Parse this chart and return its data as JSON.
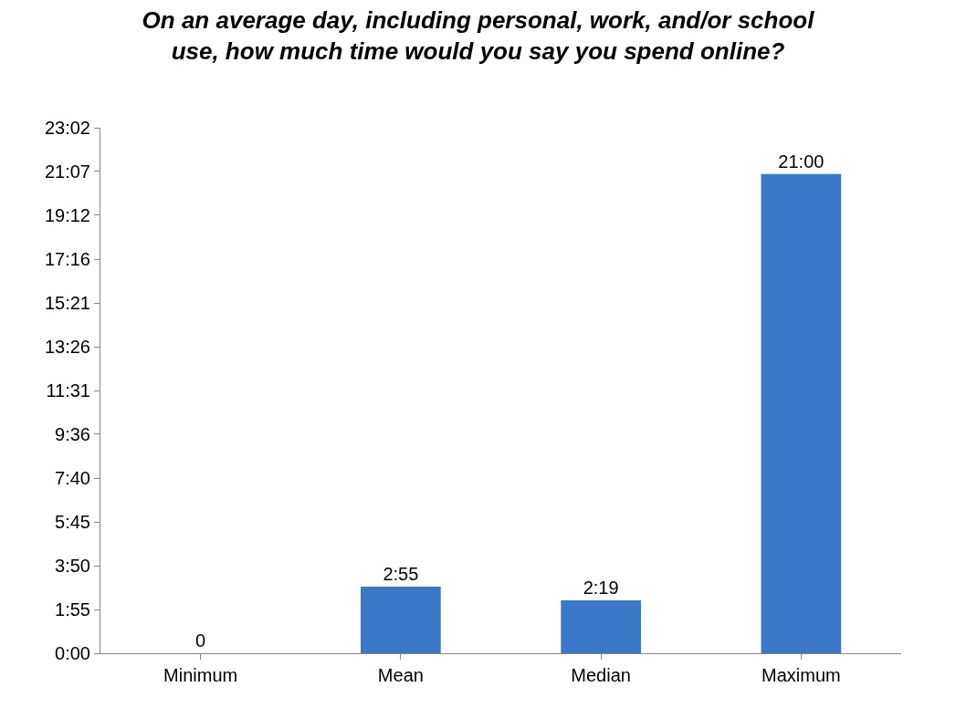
{
  "chart_data": {
    "type": "bar",
    "title": "On an average day, including personal, work, and/or school\nuse, how much time would you say you spend online?",
    "categories": [
      "Minimum",
      "Mean",
      "Median",
      "Maximum"
    ],
    "values": [
      0,
      2.9167,
      2.3167,
      21
    ],
    "value_labels": [
      "0",
      "2:55",
      "2:19",
      "21:00"
    ],
    "color": "#3a78c8",
    "ylim": [
      0,
      23.0333
    ],
    "yticks": [
      {
        "value": 0,
        "label": "0:00"
      },
      {
        "value": 1.9167,
        "label": "1:55"
      },
      {
        "value": 3.8333,
        "label": "3:50"
      },
      {
        "value": 5.75,
        "label": "5:45"
      },
      {
        "value": 7.6667,
        "label": "7:40"
      },
      {
        "value": 9.6,
        "label": "9:36"
      },
      {
        "value": 11.5167,
        "label": "11:31"
      },
      {
        "value": 13.4333,
        "label": "13:26"
      },
      {
        "value": 15.35,
        "label": "15:21"
      },
      {
        "value": 17.2667,
        "label": "17:16"
      },
      {
        "value": 19.2,
        "label": "19:12"
      },
      {
        "value": 21.1167,
        "label": "21:07"
      },
      {
        "value": 23.0333,
        "label": "23:02"
      }
    ],
    "legend": false
  }
}
